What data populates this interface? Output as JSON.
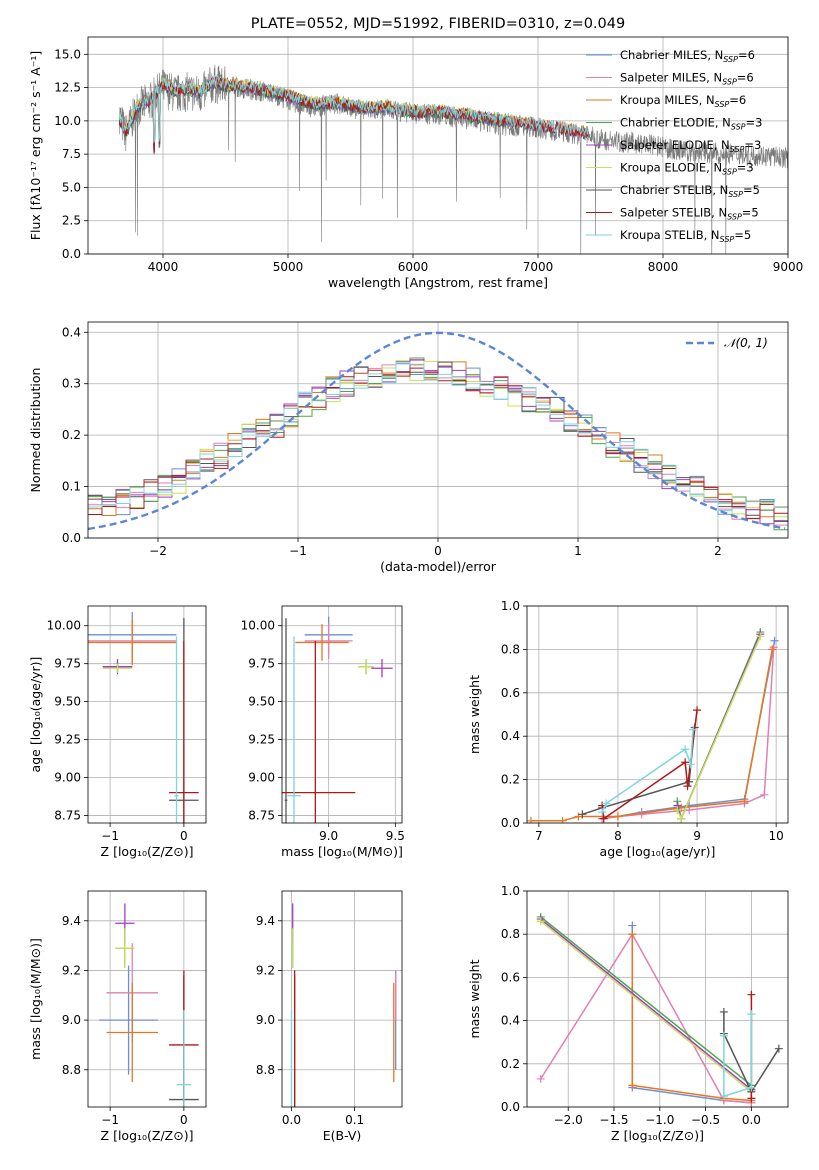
{
  "colors": {
    "chabrier_miles": "#6a8fd8",
    "salpeter_miles": "#e27fb3",
    "kroupa_miles": "#e8761f",
    "chabrier_elodie": "#4aa84a",
    "salpeter_elodie": "#a33cc4",
    "kroupa_elodie": "#c8e05a",
    "chabrier_stelib": "#555555",
    "salpeter_stelib": "#b01818",
    "kroupa_stelib": "#7dd6de"
  },
  "chart_data": [
    {
      "id": "spectrum",
      "type": "line",
      "title": "PLATE=0552, MJD=51992, FIBERID=0310, z=0.049",
      "xlabel": "wavelength [Angstrom, rest frame]",
      "ylabel": "Flux [fλ10⁻¹⁷ erg cm⁻² s⁻¹ A⁻¹]",
      "xlim": [
        3400,
        9000
      ],
      "ylim": [
        0,
        16.3
      ],
      "xticks": [
        "4000",
        "5000",
        "6000",
        "7000",
        "8000",
        "9000"
      ],
      "yticks": [
        "0.0",
        "2.5",
        "5.0",
        "7.5",
        "10.0",
        "12.5",
        "15.0"
      ],
      "legend": [
        "Chabrier MILES, N_SSP=6",
        "Salpeter MILES, N_SSP=6",
        "Kroupa MILES, N_SSP=6",
        "Chabrier ELODIE, N_SSP=3",
        "Salpeter ELODIE, N_SSP=3",
        "Kroupa ELODIE, N_SSP=3",
        "Chabrier STELIB, N_SSP=5",
        "Salpeter STELIB, N_SSP=5",
        "Kroupa STELIB, N_SSP=5"
      ],
      "legend_placement": "upper right",
      "data_series": {
        "name": "data",
        "x": [
          3650,
          3700,
          3800,
          3900,
          4000,
          4100,
          4200,
          4300,
          4400,
          4500,
          4600,
          4700,
          4800,
          4900,
          5000,
          5100,
          5200,
          5300,
          5400,
          5500,
          5600,
          5700,
          5800,
          5900,
          6000,
          6100,
          6200,
          6300,
          6400,
          6500,
          6600,
          6700,
          6800,
          6900,
          7000,
          7100,
          7200,
          7300,
          7400,
          7500,
          7600,
          7700,
          7800,
          7900,
          8000,
          8100,
          8200,
          8300,
          8400,
          8500,
          8600,
          8700,
          8800,
          8900,
          9000
        ],
        "y": [
          10.5,
          9.0,
          11.0,
          11.5,
          12.5,
          12.0,
          12.2,
          12.0,
          12.8,
          12.6,
          12.5,
          12.4,
          12.2,
          12.0,
          11.6,
          11.2,
          11.0,
          11.2,
          11.3,
          11.0,
          10.8,
          10.8,
          10.9,
          10.7,
          10.6,
          10.5,
          10.5,
          10.3,
          10.2,
          10.0,
          9.8,
          9.7,
          9.6,
          9.6,
          9.5,
          9.3,
          9.2,
          9.0,
          8.9,
          8.6,
          8.5,
          8.4,
          8.3,
          8.2,
          8.0,
          7.8,
          7.7,
          7.6,
          7.6,
          7.5,
          7.5,
          7.4,
          7.4,
          7.3,
          7.2
        ]
      },
      "model_series": {
        "name": "models",
        "x": [
          3650,
          3700,
          3800,
          3900,
          4000,
          4100,
          4200,
          4300,
          4400,
          4500,
          4600,
          4700,
          4800,
          4900,
          5000,
          5200,
          5400,
          5600,
          5800,
          6000,
          6200,
          6400,
          6600,
          6800,
          7000,
          7200,
          7400
        ],
        "y": [
          10.0,
          9.0,
          11.0,
          11.5,
          12.7,
          12.2,
          12.3,
          12.1,
          12.8,
          12.6,
          12.5,
          12.4,
          12.2,
          12.0,
          11.8,
          11.2,
          11.2,
          10.9,
          10.9,
          10.6,
          10.6,
          10.4,
          10.1,
          9.9,
          9.6,
          9.3,
          9.0
        ]
      }
    },
    {
      "id": "residuals",
      "type": "line",
      "title": "",
      "xlabel": "(data-model)/error",
      "ylabel": "Normed distribution",
      "xlim": [
        -2.5,
        2.5
      ],
      "ylim": [
        0,
        0.42
      ],
      "xticks": [
        "−2",
        "−1",
        "0",
        "1",
        "2"
      ],
      "yticks": [
        "0.0",
        "0.1",
        "0.2",
        "0.3",
        "0.4"
      ],
      "legend": [
        "𝒩(0, 1)"
      ],
      "legend_placement": "upper right",
      "gaussian": {
        "mean": 0,
        "sigma": 1
      },
      "hist_centers": [
        -2.45,
        -2.35,
        -2.25,
        -2.15,
        -2.05,
        -1.95,
        -1.85,
        -1.75,
        -1.65,
        -1.55,
        -1.45,
        -1.35,
        -1.25,
        -1.15,
        -1.05,
        -0.95,
        -0.85,
        -0.75,
        -0.65,
        -0.55,
        -0.45,
        -0.35,
        -0.25,
        -0.15,
        -0.05,
        0.05,
        0.15,
        0.25,
        0.35,
        0.45,
        0.55,
        0.65,
        0.75,
        0.85,
        0.95,
        1.05,
        1.15,
        1.25,
        1.35,
        1.45,
        1.55,
        1.65,
        1.75,
        1.85,
        1.95,
        2.05,
        2.15,
        2.25,
        2.35,
        2.45
      ],
      "hist_base": [
        0.06,
        0.06,
        0.07,
        0.08,
        0.09,
        0.1,
        0.11,
        0.13,
        0.15,
        0.16,
        0.18,
        0.2,
        0.22,
        0.22,
        0.24,
        0.26,
        0.27,
        0.29,
        0.3,
        0.31,
        0.31,
        0.32,
        0.32,
        0.33,
        0.33,
        0.33,
        0.32,
        0.31,
        0.3,
        0.29,
        0.28,
        0.27,
        0.26,
        0.25,
        0.23,
        0.22,
        0.2,
        0.18,
        0.17,
        0.15,
        0.14,
        0.12,
        0.11,
        0.1,
        0.08,
        0.07,
        0.06,
        0.05,
        0.05,
        0.04
      ]
    },
    {
      "id": "age-metallicity",
      "type": "scatter",
      "xlabel": "Z [log₁₀(Z/Z⊙)]",
      "ylabel": "age  [log₁₀(age/yr)]",
      "xlim": [
        -1.3,
        0.3
      ],
      "ylim": [
        8.7,
        10.13
      ],
      "xticks": [
        "−1",
        "0"
      ],
      "yticks": [
        "8.75",
        "9.00",
        "9.25",
        "9.50",
        "9.75",
        "10.00"
      ],
      "points": [
        {
          "model": "chabrier_miles",
          "x": -0.7,
          "xerr": 0.6,
          "y": 9.94,
          "yerr": 0.15
        },
        {
          "model": "salpeter_miles",
          "x": -0.7,
          "xerr": 0.6,
          "y": 9.9,
          "yerr": 0.15
        },
        {
          "model": "kroupa_miles",
          "x": -0.7,
          "xerr": 0.6,
          "y": 9.89,
          "yerr": 0.15
        },
        {
          "model": "chabrier_elodie",
          "x": -0.9,
          "xerr": 0.2,
          "y": 9.73,
          "yerr": 0.03
        },
        {
          "model": "salpeter_elodie",
          "x": -0.9,
          "xerr": 0.2,
          "y": 9.73,
          "yerr": 0.05
        },
        {
          "model": "kroupa_elodie",
          "x": -0.9,
          "xerr": 0.2,
          "y": 9.72,
          "yerr": 0.03
        },
        {
          "model": "chabrier_stelib",
          "x": 0.0,
          "xerr": 0.2,
          "y": 8.85,
          "yerr": 1.2
        },
        {
          "model": "salpeter_stelib",
          "x": 0.0,
          "xerr": 0.2,
          "y": 8.9,
          "yerr": 1.0
        },
        {
          "model": "kroupa_stelib",
          "x": -0.1,
          "xerr": 0.03,
          "y": 8.88,
          "yerr": 1.05
        }
      ]
    },
    {
      "id": "age-mass",
      "type": "scatter",
      "xlabel": "mass [log₁₀(M/M⊙)]",
      "ylabel": "",
      "xlim": [
        8.65,
        9.55
      ],
      "ylim": [
        8.7,
        10.13
      ],
      "xticks": [
        "9.0",
        "9.5"
      ],
      "yticks": [
        "8.75",
        "9.00",
        "9.25",
        "9.50",
        "9.75",
        "10.00"
      ],
      "points": [
        {
          "model": "chabrier_miles",
          "x": 9.0,
          "xerr": 0.18,
          "y": 9.94,
          "yerr": 0.12
        },
        {
          "model": "salpeter_miles",
          "x": 9.0,
          "xerr": 0.18,
          "y": 9.9,
          "yerr": 0.12
        },
        {
          "model": "kroupa_miles",
          "x": 8.95,
          "xerr": 0.2,
          "y": 9.89,
          "yerr": 0.12
        },
        {
          "model": "chabrier_elodie",
          "x": 9.28,
          "xerr": 0.06,
          "y": 9.73,
          "yerr": 0.05
        },
        {
          "model": "salpeter_elodie",
          "x": 9.4,
          "xerr": 0.08,
          "y": 9.72,
          "yerr": 0.06
        },
        {
          "model": "kroupa_elodie",
          "x": 9.28,
          "xerr": 0.06,
          "y": 9.73,
          "yerr": 0.05
        },
        {
          "model": "chabrier_stelib",
          "x": 8.68,
          "xerr": 0.01,
          "y": 8.85,
          "yerr": 1.2
        },
        {
          "model": "salpeter_stelib",
          "x": 8.9,
          "xerr": 0.3,
          "y": 8.9,
          "yerr": 1.0
        },
        {
          "model": "kroupa_stelib",
          "x": 8.74,
          "xerr": 0.05,
          "y": 8.88,
          "yerr": 1.05
        }
      ]
    },
    {
      "id": "weight-age",
      "type": "line",
      "xlabel": "age  [log₁₀(age/yr)]",
      "ylabel": "mass weight",
      "xlim": [
        6.85,
        10.15
      ],
      "ylim": [
        0,
        1
      ],
      "xticks": [
        "7",
        "8",
        "9",
        "10"
      ],
      "yticks": [
        "0.0",
        "0.2",
        "0.4",
        "0.6",
        "0.8",
        "1.0"
      ],
      "series": [
        {
          "model": "chabrier_miles",
          "x": [
            7.8,
            8.0,
            8.3,
            8.9,
            9.6,
            9.98
          ],
          "y": [
            0.02,
            0.03,
            0.05,
            0.08,
            0.11,
            0.84
          ]
        },
        {
          "model": "salpeter_miles",
          "x": [
            7.8,
            8.0,
            8.3,
            8.9,
            9.6,
            9.85,
            9.97
          ],
          "y": [
            0.02,
            0.03,
            0.04,
            0.06,
            0.09,
            0.13,
            0.81
          ]
        },
        {
          "model": "kroupa_miles",
          "x": [
            6.9,
            7.3,
            7.5,
            8.0,
            8.8,
            9.6,
            9.95
          ],
          "y": [
            0.01,
            0.01,
            0.03,
            0.03,
            0.07,
            0.1,
            0.8
          ]
        },
        {
          "model": "chabrier_elodie",
          "x": [
            8.75,
            8.8,
            9.8
          ],
          "y": [
            0.1,
            0.02,
            0.88
          ]
        },
        {
          "model": "salpeter_elodie",
          "x": [
            8.75,
            8.8,
            9.8
          ],
          "y": [
            0.08,
            0.02,
            0.87
          ]
        },
        {
          "model": "kroupa_elodie",
          "x": [
            8.75,
            8.8,
            9.8
          ],
          "y": [
            0.06,
            0.02,
            0.86
          ]
        },
        {
          "model": "chabrier_stelib",
          "x": [
            7.55,
            7.8,
            8.9,
            8.97
          ],
          "y": [
            0.04,
            0.07,
            0.19,
            0.44
          ]
        },
        {
          "model": "salpeter_stelib",
          "x": [
            7.8,
            7.82,
            8.85,
            8.88,
            9.0
          ],
          "y": [
            0.08,
            0.02,
            0.28,
            0.17,
            0.52
          ]
        },
        {
          "model": "kroupa_stelib",
          "x": [
            7.8,
            7.85,
            8.85,
            8.92,
            8.95
          ],
          "y": [
            0.05,
            0.09,
            0.34,
            0.27,
            0.43
          ]
        }
      ]
    },
    {
      "id": "mass-metallicity",
      "type": "scatter",
      "xlabel": "Z [log₁₀(Z/Z⊙)]",
      "ylabel": "mass [log₁₀(M/M⊙)]",
      "xlim": [
        -1.3,
        0.3
      ],
      "ylim": [
        8.65,
        9.52
      ],
      "xticks": [
        "−1",
        "0"
      ],
      "yticks": [
        "8.8",
        "9.0",
        "9.2",
        "9.4"
      ],
      "points": [
        {
          "model": "chabrier_miles",
          "x": -0.75,
          "xerr": 0.4,
          "y": 9.0,
          "yerr": 0.22
        },
        {
          "model": "salpeter_miles",
          "x": -0.7,
          "xerr": 0.35,
          "y": 9.11,
          "yerr": 0.2
        },
        {
          "model": "kroupa_miles",
          "x": -0.7,
          "xerr": 0.35,
          "y": 8.95,
          "yerr": 0.2
        },
        {
          "model": "chabrier_elodie",
          "x": -0.8,
          "xerr": 0.13,
          "y": 9.29,
          "yerr": 0.08
        },
        {
          "model": "salpeter_elodie",
          "x": -0.8,
          "xerr": 0.13,
          "y": 9.39,
          "yerr": 0.08
        },
        {
          "model": "kroupa_elodie",
          "x": -0.8,
          "xerr": 0.13,
          "y": 9.29,
          "yerr": 0.08
        },
        {
          "model": "chabrier_stelib",
          "x": 0.0,
          "xerr": 0.2,
          "y": 8.68,
          "yerr": 0.5
        },
        {
          "model": "salpeter_stelib",
          "x": 0.0,
          "xerr": 0.2,
          "y": 8.9,
          "yerr": 0.3
        },
        {
          "model": "kroupa_stelib",
          "x": 0.0,
          "xerr": 0.1,
          "y": 8.74,
          "yerr": 0.3
        }
      ]
    },
    {
      "id": "mass-ebv",
      "type": "scatter",
      "xlabel": "E(B-V)",
      "ylabel": "",
      "xlim": [
        -0.015,
        0.175
      ],
      "ylim": [
        8.65,
        9.52
      ],
      "xticks": [
        "0.0",
        "0.1"
      ],
      "yticks": [
        "8.8",
        "9.0",
        "9.2",
        "9.4"
      ],
      "points": [
        {
          "model": "chabrier_miles",
          "x": 0.165,
          "xerr": 0,
          "y": 9.0,
          "yerr": 0.2
        },
        {
          "model": "salpeter_miles",
          "x": 0.165,
          "xerr": 0,
          "y": 9.1,
          "yerr": 0.1
        },
        {
          "model": "kroupa_miles",
          "x": 0.162,
          "xerr": 0,
          "y": 8.95,
          "yerr": 0.2
        },
        {
          "model": "chabrier_elodie",
          "x": 0.002,
          "xerr": 0,
          "y": 9.29,
          "yerr": 0.08
        },
        {
          "model": "salpeter_elodie",
          "x": 0.002,
          "xerr": 0,
          "y": 9.39,
          "yerr": 0.08
        },
        {
          "model": "kroupa_elodie",
          "x": 0.002,
          "xerr": 0,
          "y": 9.29,
          "yerr": 0.08
        },
        {
          "model": "chabrier_stelib",
          "x": 0.005,
          "xerr": 0,
          "y": 8.68,
          "yerr": 0.5
        },
        {
          "model": "salpeter_stelib",
          "x": 0.005,
          "xerr": 0,
          "y": 8.9,
          "yerr": 0.3
        },
        {
          "model": "kroupa_stelib",
          "x": 0.0,
          "xerr": 0,
          "y": 8.74,
          "yerr": 0.3
        }
      ]
    },
    {
      "id": "weight-metallicity",
      "type": "line",
      "xlabel": "Z [log₁₀(Z/Z⊙)]",
      "ylabel": "mass weight",
      "xlim": [
        -2.45,
        0.4
      ],
      "ylim": [
        0,
        1
      ],
      "xticks": [
        "−2.0",
        "−1.5",
        "−1.0",
        "−0.5",
        "0.0"
      ],
      "yticks": [
        "0.0",
        "0.2",
        "0.4",
        "0.6",
        "0.8",
        "1.0"
      ],
      "series": [
        {
          "model": "chabrier_miles",
          "x": [
            -1.3,
            -1.3,
            -0.3,
            0.0
          ],
          "y": [
            0.84,
            0.09,
            0.03,
            0.02
          ]
        },
        {
          "model": "salpeter_miles",
          "x": [
            -2.3,
            -1.3,
            -0.3,
            0.0
          ],
          "y": [
            0.13,
            0.8,
            0.03,
            0.02
          ]
        },
        {
          "model": "kroupa_miles",
          "x": [
            -1.3,
            -1.3,
            -0.3,
            0.0
          ],
          "y": [
            0.8,
            0.1,
            0.04,
            0.03
          ]
        },
        {
          "model": "chabrier_elodie",
          "x": [
            -2.3,
            0.0
          ],
          "y": [
            0.88,
            0.1
          ]
        },
        {
          "model": "salpeter_elodie",
          "x": [
            -2.3,
            0.0
          ],
          "y": [
            0.87,
            0.08
          ]
        },
        {
          "model": "kroupa_elodie",
          "x": [
            -2.3,
            0.0
          ],
          "y": [
            0.86,
            0.07
          ]
        },
        {
          "model": "chabrier_stelib",
          "x": [
            -0.3,
            -0.3,
            0.0,
            0.3
          ],
          "y": [
            0.44,
            0.34,
            0.07,
            0.27
          ]
        },
        {
          "model": "salpeter_stelib",
          "x": [
            0.0,
            0.0
          ],
          "y": [
            0.52,
            0.04
          ]
        },
        {
          "model": "kroupa_stelib",
          "x": [
            -0.3,
            -0.3,
            0.0,
            0.0
          ],
          "y": [
            0.33,
            0.05,
            0.09,
            0.43
          ]
        }
      ]
    }
  ]
}
